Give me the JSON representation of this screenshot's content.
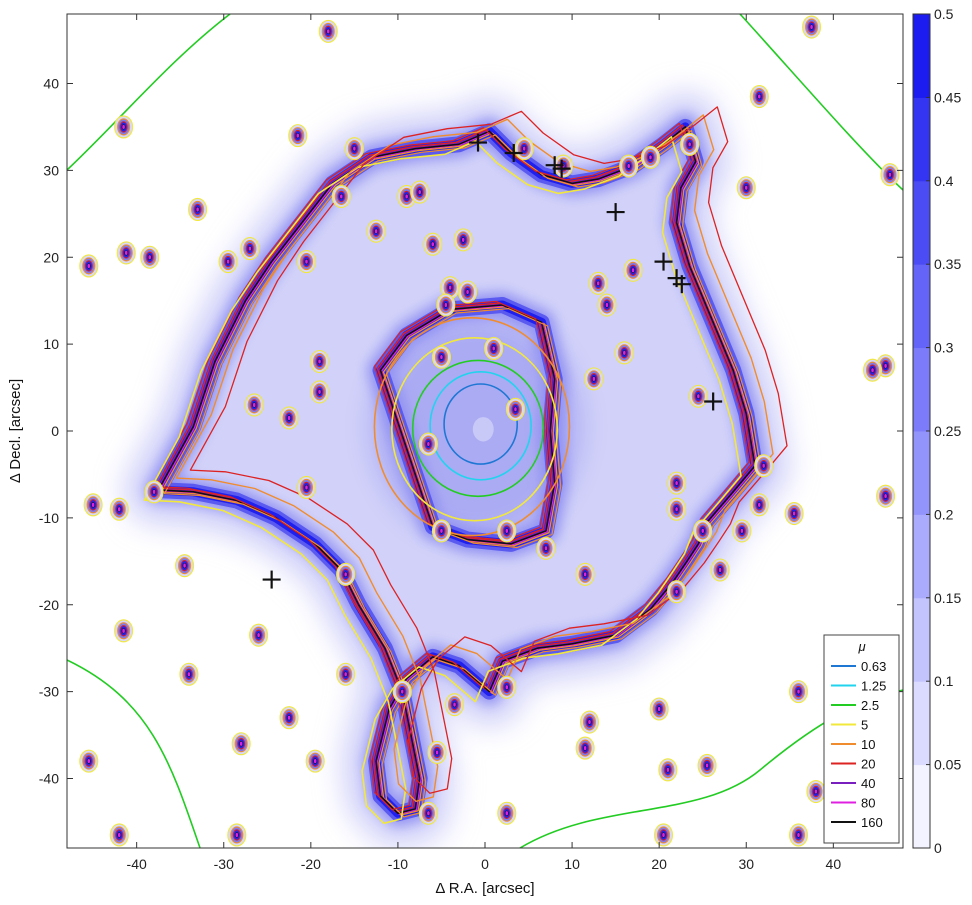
{
  "chart_data": {
    "type": "contour",
    "xlabel": "Δ R.A. [arcsec]",
    "ylabel": "Δ Decl. [arcsec]",
    "xlim": [
      -48,
      48
    ],
    "ylim": [
      -48,
      48
    ],
    "x_ticks": [
      -40,
      -30,
      -20,
      -10,
      0,
      10,
      20,
      30,
      40
    ],
    "y_ticks": [
      -40,
      -30,
      -20,
      -10,
      0,
      10,
      20,
      30,
      40
    ],
    "x_tick_labels": [
      "-40",
      "-30",
      "-20",
      "-10",
      "0",
      "10",
      "20",
      "30",
      "40"
    ],
    "y_tick_labels": [
      "-40",
      "-30",
      "-20",
      "-10",
      "0",
      "10",
      "20",
      "30",
      "40"
    ],
    "colorbar": {
      "min": 0,
      "max": 0.5,
      "ticks": [
        0,
        0.05,
        0.1,
        0.15,
        0.2,
        0.25,
        0.3,
        0.35,
        0.4,
        0.45,
        0.5
      ],
      "tick_labels": [
        "0",
        "0.05",
        "0.1",
        "0.15",
        "0.2",
        "0.25",
        "0.3",
        "0.35",
        "0.4",
        "0.45",
        "0.5"
      ],
      "color_low": "#ffffff",
      "color_high": "#1010ee"
    },
    "legend": {
      "title": "μ",
      "placement": "bottom-right",
      "entries": [
        {
          "label": "0.63",
          "color": "#1f77d4"
        },
        {
          "label": "1.25",
          "color": "#22d3ee"
        },
        {
          "label": "2.5",
          "color": "#22cc22"
        },
        {
          "label": "5",
          "color": "#f2e83c"
        },
        {
          "label": "10",
          "color": "#f08c2e"
        },
        {
          "label": "20",
          "color": "#dd2222"
        },
        {
          "label": "40",
          "color": "#7a1fbf"
        },
        {
          "label": "80",
          "color": "#e020e0"
        },
        {
          "label": "160",
          "color": "#111111"
        }
      ]
    },
    "crosses": [
      {
        "x": -0.8,
        "y": 33.2
      },
      {
        "x": 3.3,
        "y": 32.0
      },
      {
        "x": 8.0,
        "y": 30.6
      },
      {
        "x": 8.8,
        "y": 30.2
      },
      {
        "x": 15.0,
        "y": 25.2
      },
      {
        "x": 20.5,
        "y": 19.5
      },
      {
        "x": 22.0,
        "y": 17.6
      },
      {
        "x": 22.6,
        "y": 16.9
      },
      {
        "x": 26.2,
        "y": 3.4
      },
      {
        "x": -24.5,
        "y": -17.1
      }
    ],
    "critical_curve_outer": [
      [
        -37.5,
        -6.8
      ],
      [
        -33.5,
        0.5
      ],
      [
        -31,
        8
      ],
      [
        -27.5,
        15
      ],
      [
        -24.5,
        19.5
      ],
      [
        -21,
        24
      ],
      [
        -17.5,
        28.5
      ],
      [
        -13,
        31.5
      ],
      [
        -8,
        32.5
      ],
      [
        -3,
        33
      ],
      [
        0.5,
        34.5
      ],
      [
        3,
        32
      ],
      [
        6.5,
        29.5
      ],
      [
        10,
        28.5
      ],
      [
        13,
        29
      ],
      [
        17,
        30.5
      ],
      [
        20.5,
        33
      ],
      [
        23,
        35
      ],
      [
        24.2,
        31
      ],
      [
        22.5,
        28
      ],
      [
        22,
        24
      ],
      [
        23.5,
        19
      ],
      [
        26,
        13
      ],
      [
        28.5,
        7
      ],
      [
        30,
        2
      ],
      [
        31,
        -4
      ],
      [
        28.5,
        -7
      ],
      [
        25.5,
        -10.5
      ],
      [
        24.5,
        -13
      ],
      [
        23.2,
        -15
      ],
      [
        21.5,
        -17.5
      ],
      [
        19,
        -20.5
      ],
      [
        15,
        -23.5
      ],
      [
        10,
        -24.5
      ],
      [
        6,
        -25
      ],
      [
        2,
        -26.5
      ],
      [
        0.5,
        -30
      ],
      [
        -3,
        -27
      ],
      [
        -6,
        -26
      ],
      [
        -9,
        -28.5
      ],
      [
        -11,
        -32
      ],
      [
        -12.5,
        -38
      ],
      [
        -12,
        -42
      ],
      [
        -10,
        -44
      ],
      [
        -8,
        -43.5
      ],
      [
        -7.5,
        -40
      ],
      [
        -9.5,
        -30
      ],
      [
        -11.5,
        -25
      ],
      [
        -14.5,
        -20
      ],
      [
        -16.5,
        -16
      ],
      [
        -19.5,
        -13
      ],
      [
        -24,
        -10
      ],
      [
        -28.5,
        -8
      ],
      [
        -33.5,
        -7
      ],
      [
        -37.5,
        -6.8
      ]
    ],
    "critical_curve_inner": [
      [
        -4,
        14
      ],
      [
        2,
        14.5
      ],
      [
        6.5,
        12.5
      ],
      [
        8,
        6
      ],
      [
        7.5,
        0
      ],
      [
        8,
        -6
      ],
      [
        7,
        -11.5
      ],
      [
        3,
        -13
      ],
      [
        -2,
        -12.5
      ],
      [
        -6,
        -11
      ],
      [
        -8,
        -5
      ],
      [
        -10,
        1
      ],
      [
        -12,
        7
      ],
      [
        -9,
        11
      ],
      [
        -4,
        14
      ]
    ],
    "magnification_contours": [
      {
        "level": "0.63",
        "center": [
          -0.5,
          0.8
        ],
        "rx": 4.2,
        "ry": 4.6
      },
      {
        "level": "1.25",
        "center": [
          -0.5,
          0.6
        ],
        "rx": 5.8,
        "ry": 6.2
      },
      {
        "level": "2.5",
        "center": [
          -0.8,
          0.3
        ],
        "rx": 7.5,
        "ry": 7.8
      },
      {
        "level": "5",
        "center": [
          -1.2,
          0.2
        ],
        "rx": 9.5,
        "ry": 10.5
      },
      {
        "level": "10",
        "center": [
          -1.5,
          0.5
        ],
        "rx": 11.2,
        "ry": 12.5
      }
    ],
    "compact_sources": [
      [
        -45.5,
        19.0
      ],
      [
        -41.2,
        20.5
      ],
      [
        -38.5,
        20.0
      ],
      [
        -41.5,
        35.0
      ],
      [
        -33.0,
        25.5
      ],
      [
        -42.0,
        -9.0
      ],
      [
        -45.0,
        -8.5
      ],
      [
        -38.0,
        -7.0
      ],
      [
        -34.5,
        -15.5
      ],
      [
        -41.5,
        -23.0
      ],
      [
        -34.0,
        -28.0
      ],
      [
        -28.0,
        -36.0
      ],
      [
        -28.5,
        -46.5
      ],
      [
        -42.0,
        -46.5
      ],
      [
        -45.5,
        -38.0
      ],
      [
        -22.5,
        -33.0
      ],
      [
        -19.5,
        -38.0
      ],
      [
        -16.0,
        -28.0
      ],
      [
        -26.0,
        -23.5
      ],
      [
        -6.5,
        -44.0
      ],
      [
        -5.5,
        -37.0
      ],
      [
        2.5,
        -44.0
      ],
      [
        11.5,
        -36.5
      ],
      [
        20.0,
        -32.0
      ],
      [
        21.0,
        -39.0
      ],
      [
        20.5,
        -46.5
      ],
      [
        36.0,
        -46.5
      ],
      [
        38.0,
        -41.5
      ],
      [
        36.0,
        -30.0
      ],
      [
        25.5,
        -38.5
      ],
      [
        22.0,
        -18.5
      ],
      [
        31.5,
        -8.5
      ],
      [
        29.5,
        -11.5
      ],
      [
        35.5,
        -9.5
      ],
      [
        46.0,
        -7.5
      ],
      [
        46.0,
        7.5
      ],
      [
        44.5,
        7.0
      ],
      [
        46.5,
        29.5
      ],
      [
        37.5,
        46.5
      ],
      [
        31.5,
        38.5
      ],
      [
        23.5,
        33.0
      ],
      [
        19.0,
        31.5
      ],
      [
        16.5,
        30.5
      ],
      [
        9.0,
        30.5
      ],
      [
        4.5,
        32.5
      ],
      [
        -2.0,
        16.0
      ],
      [
        -4.0,
        16.5
      ],
      [
        -6.0,
        21.5
      ],
      [
        -2.5,
        22.0
      ],
      [
        -4.5,
        14.5
      ],
      [
        -9.0,
        27.0
      ],
      [
        -7.5,
        27.5
      ],
      [
        -12.5,
        23.0
      ],
      [
        -16.5,
        27.0
      ],
      [
        -20.5,
        19.5
      ],
      [
        -29.5,
        19.5
      ],
      [
        -27.0,
        21.0
      ],
      [
        -19.0,
        8.0
      ],
      [
        -19.0,
        4.5
      ],
      [
        -26.5,
        3.0
      ],
      [
        -22.5,
        1.5
      ],
      [
        -20.5,
        -6.5
      ],
      [
        -16.0,
        -16.5
      ],
      [
        -9.5,
        -30.0
      ],
      [
        -3.5,
        -31.5
      ],
      [
        2.5,
        -29.5
      ],
      [
        12.0,
        -33.5
      ],
      [
        14.0,
        14.5
      ],
      [
        13.0,
        17.0
      ],
      [
        17.0,
        18.5
      ],
      [
        16.0,
        9.0
      ],
      [
        12.5,
        6.0
      ],
      [
        7.0,
        -13.5
      ],
      [
        11.5,
        -16.5
      ],
      [
        2.5,
        -11.5
      ],
      [
        -5.0,
        -11.5
      ],
      [
        -6.5,
        -1.5
      ],
      [
        -5.0,
        8.5
      ],
      [
        1.0,
        9.5
      ],
      [
        3.5,
        2.5
      ],
      [
        24.5,
        4.0
      ],
      [
        22.0,
        -6.0
      ],
      [
        22.0,
        -9.0
      ],
      [
        25.0,
        -11.5
      ],
      [
        27.0,
        -16.0
      ],
      [
        32.0,
        -4.0
      ],
      [
        30.0,
        28.0
      ],
      [
        -18.0,
        46.0
      ],
      [
        -21.5,
        34.0
      ],
      [
        -15.0,
        32.5
      ]
    ]
  }
}
